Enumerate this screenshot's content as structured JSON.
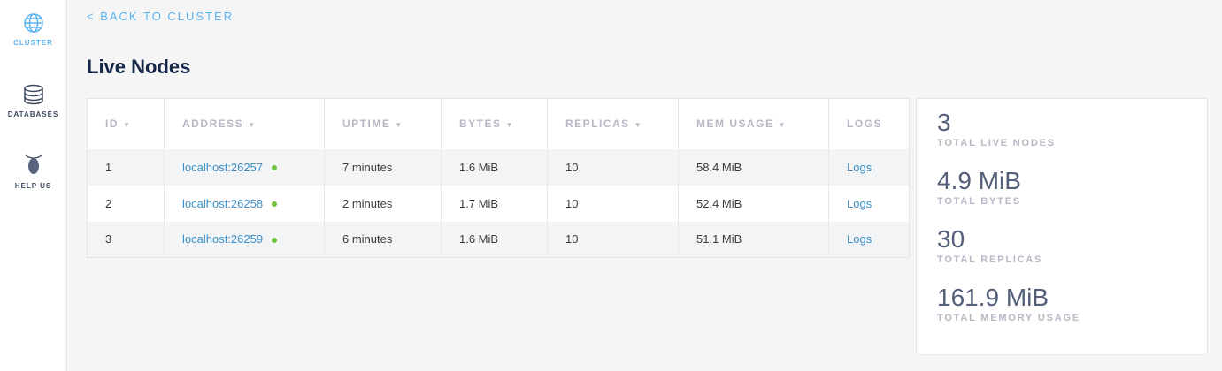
{
  "sidebar": {
    "items": [
      {
        "label": "CLUSTER",
        "icon": "globe-icon",
        "active": true
      },
      {
        "label": "DATABASES",
        "icon": "database-icon"
      },
      {
        "label": "HELP US",
        "icon": "cockroach-icon"
      }
    ]
  },
  "back_link": "< BACK TO CLUSTER",
  "title": "Live Nodes",
  "table": {
    "headers": [
      "ID",
      "ADDRESS",
      "UPTIME",
      "BYTES",
      "REPLICAS",
      "MEM USAGE",
      "LOGS"
    ],
    "rows": [
      {
        "id": "1",
        "address": "localhost:26257",
        "uptime": "7 minutes",
        "bytes": "1.6 MiB",
        "replicas": "10",
        "mem": "58.4 MiB",
        "logs": "Logs"
      },
      {
        "id": "2",
        "address": "localhost:26258",
        "uptime": "2 minutes",
        "bytes": "1.7 MiB",
        "replicas": "10",
        "mem": "52.4 MiB",
        "logs": "Logs"
      },
      {
        "id": "3",
        "address": "localhost:26259",
        "uptime": "6 minutes",
        "bytes": "1.6 MiB",
        "replicas": "10",
        "mem": "51.1 MiB",
        "logs": "Logs"
      }
    ]
  },
  "summary": [
    {
      "value": "3",
      "label": "TOTAL LIVE NODES"
    },
    {
      "value": "4.9 MiB",
      "label": "TOTAL BYTES"
    },
    {
      "value": "30",
      "label": "TOTAL REPLICAS"
    },
    {
      "value": "161.9 MiB",
      "label": "TOTAL MEMORY USAGE"
    }
  ],
  "colors": {
    "accent": "#5ab4f4",
    "link": "#3a8fc8",
    "status_live": "#6fc13e",
    "title": "#152849"
  }
}
